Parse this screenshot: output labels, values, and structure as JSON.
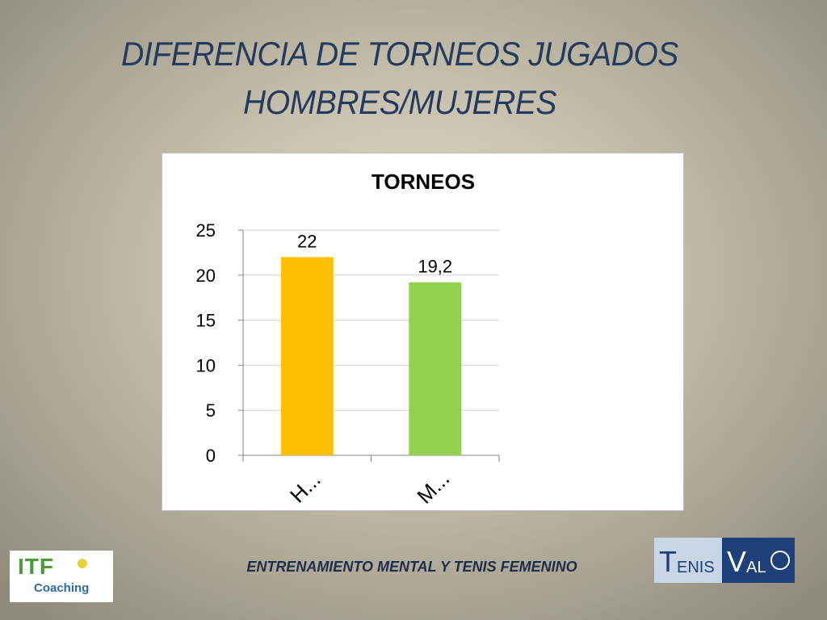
{
  "slide": {
    "title_line1": "DIFERENCIA DE TORNEOS JUGADOS",
    "title_line2": "HOMBRES/MUJERES",
    "footer": "ENTRENAMIENTO MENTAL Y TENIS FEMENINO"
  },
  "logos": {
    "itf": "ITF",
    "itf_sub": "Coaching",
    "tenisval_1": "T",
    "tenisval_2": "ENIS",
    "tenisval_3": "V",
    "tenisval_4": "AL"
  },
  "chart_data": {
    "type": "bar",
    "title": "TORNEOS",
    "categories": [
      "H...",
      "M..."
    ],
    "values": [
      22,
      19.2
    ],
    "value_labels": [
      "22",
      "19,2"
    ],
    "colors": [
      "#ffc000",
      "#92d050"
    ],
    "ylim": [
      0,
      25
    ],
    "yticks": [
      0,
      5,
      10,
      15,
      20,
      25
    ],
    "xlabel": "",
    "ylabel": "",
    "grid": true,
    "legend": "none"
  }
}
